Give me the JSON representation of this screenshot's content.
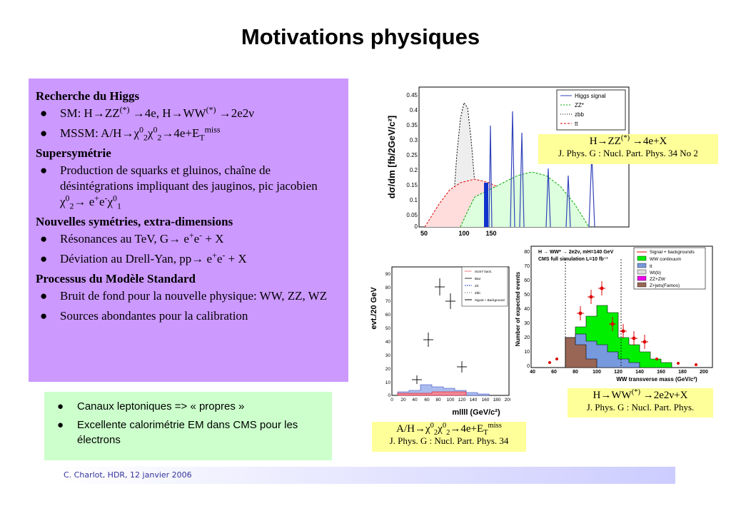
{
  "title": "Motivations physiques",
  "left_box": {
    "section1_head": "Recherche du Higgs",
    "s1_item1": "SM: H→ZZ(*) →4e, H→WW(*) →2e2ν",
    "s1_item2": "MSSM: A/H→χ02χ02→4e+ETmiss",
    "section2_head": "Supersymétrie",
    "s2_item1": "Production de squarks et gluinos, chaîne de désintégrations impliquant des jauginos, pic jacobien χ02→ e+e-χ01",
    "section3_head": "Nouvelles symétries, extra-dimensions",
    "s3_item1": "Résonances au TeV, G→ e+e- + X",
    "s3_item2": "Déviation au Drell-Yan, pp→ e+e- + X",
    "section4_head": "Processus du Modèle Standard",
    "s4_item1": "Bruit de fond pour la nouvelle physique: WW, ZZ, WZ",
    "s4_item2": "Sources abondantes pour la calibration"
  },
  "green_box": {
    "item1": "Canaux leptoniques => « propres »",
    "item2": "Excellente calorimétrie EM dans CMS pour les électrons"
  },
  "captions": {
    "c1_main": "H→ZZ(*) →4e+X",
    "c1_ref": "J. Phys. G : Nucl. Part. Phys. 34 No 2",
    "c2_main": "H→WW(*) →2e2ν+X",
    "c2_ref": "J. Phys. G : Nucl. Part. Phys.",
    "c3_main": "A/H→χ02χ02→4e+ETmiss",
    "c3_ref": "J. Phys. G : Nucl. Part. Phys. 34"
  },
  "plot1": {
    "ylabel": "dσ/dm [fb/2GeV/c²]",
    "yticks": [
      "0.45",
      "0.4",
      "0.35",
      "0.3",
      "0.25",
      "0.2",
      "0.15",
      "0.1",
      "0.05",
      "0"
    ],
    "xticks": [
      "50",
      "100",
      "150"
    ],
    "legend": [
      "Higgs signal",
      "ZZ*",
      "zbb",
      "tt"
    ]
  },
  "plot2": {
    "header1": "H → WW* → 2e2ν, mH=140 GeV",
    "header2": "CMS full simulation L=10 fb⁻¹",
    "ylabel": "Number of expected events",
    "xlabel": "WW transverse mass (GeV/c²)",
    "yticks": [
      "80",
      "70",
      "60",
      "50",
      "40",
      "30",
      "20",
      "10",
      "0"
    ],
    "xticks": [
      "40",
      "60",
      "80",
      "100",
      "120",
      "140",
      "160",
      "180",
      "200"
    ],
    "legend": [
      "Signal + backgrounds",
      "WW continuum",
      "tt",
      "Wt(b)",
      "ZZ+ZW",
      "Z+jets(Famos)"
    ]
  },
  "plot3": {
    "ylabel": "evt./20 GeV",
    "xlabel": "mllll (GeV/c²)",
    "yticks": [
      "90",
      "80",
      "70",
      "60",
      "50",
      "40",
      "30",
      "20",
      "10",
      "0"
    ],
    "xticks": [
      "0",
      "20",
      "40",
      "60",
      "80",
      "100",
      "120",
      "140",
      "160",
      "180",
      "200"
    ],
    "legend": [
      "SUSY back.",
      "tBar",
      "ZZ",
      "Zbb",
      "Signal + Background"
    ]
  },
  "footer": "C. Charlot, HDR, 12 janvier 2006",
  "colors": {
    "purple_box": "#cc99ff",
    "green_box": "#ccffcc",
    "caption_bg": "#ffff99",
    "footer_text": "#333399"
  }
}
